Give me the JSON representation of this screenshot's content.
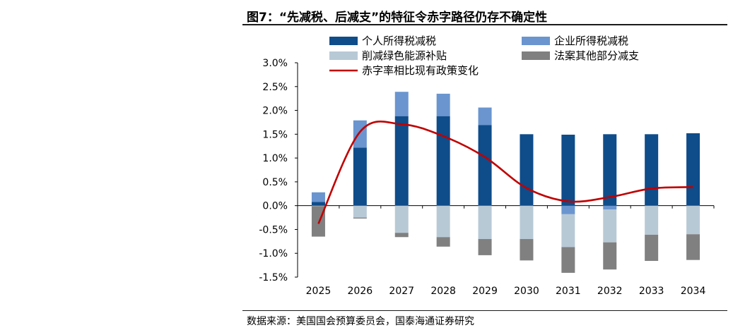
{
  "figure": {
    "title": "图7：“先减税、后减支”的特征令赤字路径仍存不确定性",
    "source": "数据来源：美国国会预算委员会，国泰海通证券研究"
  },
  "chart_data": {
    "type": "bar",
    "stacked": true,
    "title": "图7：“先减税、后减支”的特征令赤字路径仍存不确定性",
    "categories": [
      "2025",
      "2026",
      "2027",
      "2028",
      "2029",
      "2030",
      "2031",
      "2032",
      "2033",
      "2034"
    ],
    "ylim": [
      -1.5,
      3.0
    ],
    "yticks": [
      3.0,
      2.5,
      2.0,
      1.5,
      1.0,
      0.5,
      0.0,
      -0.5,
      -1.0,
      -1.5
    ],
    "ytick_labels": [
      "3.0%",
      "2.5%",
      "2.0%",
      "1.5%",
      "1.0%",
      "0.5%",
      "0.0%",
      "-0.5%",
      "-1.0%",
      "-1.5%"
    ],
    "legend_position": "top",
    "series": [
      {
        "name": "个人所得税减税",
        "kind": "bar",
        "color": "#0f4c8a",
        "values": [
          0.08,
          1.22,
          1.88,
          1.88,
          1.69,
          1.5,
          1.49,
          1.5,
          1.5,
          1.52
        ]
      },
      {
        "name": "企业所得税减税",
        "kind": "bar",
        "color": "#6a95cf",
        "values": [
          0.2,
          0.57,
          0.51,
          0.47,
          0.37,
          0.0,
          -0.18,
          -0.08,
          0.0,
          0.0
        ]
      },
      {
        "name": "削减绿色能源补贴",
        "kind": "bar",
        "color": "#b8c9d6",
        "values": [
          -0.01,
          -0.25,
          -0.57,
          -0.66,
          -0.7,
          -0.7,
          -0.69,
          -0.69,
          -0.61,
          -0.6
        ]
      },
      {
        "name": "法案其他部分减支",
        "kind": "bar",
        "color": "#808080",
        "values": [
          -0.64,
          -0.02,
          -0.09,
          -0.2,
          -0.34,
          -0.45,
          -0.54,
          -0.57,
          -0.55,
          -0.54
        ]
      },
      {
        "name": "赤字率相比现有政策变化",
        "kind": "line",
        "color": "#c00000",
        "values": [
          -0.38,
          1.55,
          1.71,
          1.46,
          1.02,
          0.37,
          0.09,
          0.18,
          0.36,
          0.39
        ]
      }
    ]
  }
}
